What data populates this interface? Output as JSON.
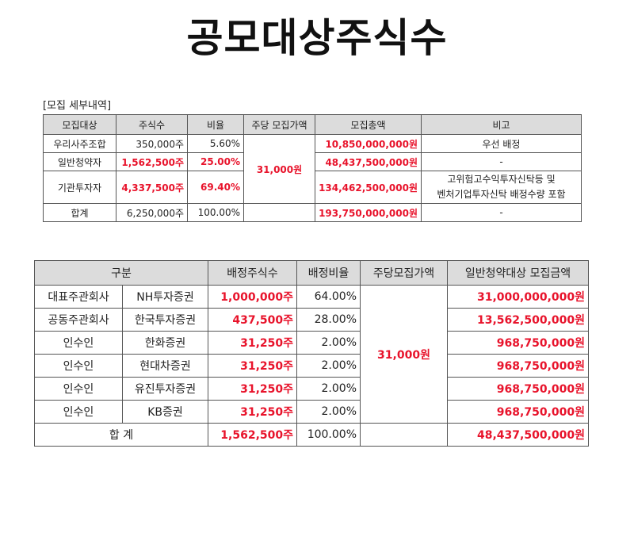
{
  "title": "공모대상주식수",
  "section_label": "[모집 세부내역]",
  "table1": {
    "headers": [
      "모집대상",
      "주식수",
      "비율",
      "주당 모집가액",
      "모집총액",
      "비고"
    ],
    "price": "31,000원",
    "rows": [
      {
        "target": "우리사주조합",
        "shares": "350,000주",
        "ratio": "5.60%",
        "total": "10,850,000,000원",
        "note": "우선 배정"
      },
      {
        "target": "일반청약자",
        "shares": "1,562,500주",
        "ratio": "25.00%",
        "total": "48,437,500,000원",
        "note": "-"
      },
      {
        "target": "기관투자자",
        "shares": "4,337,500주",
        "ratio": "69.40%",
        "total": "134,462,500,000원",
        "note_line1": "고위험고수익투자신탁등 및",
        "note_line2": "벤처기업투자신탁 배정수량 포함"
      },
      {
        "target": "합계",
        "shares": "6,250,000주",
        "ratio": "100.00%",
        "total": "193,750,000,000원",
        "note": "-"
      }
    ]
  },
  "table2": {
    "headers": [
      "구분",
      "배정주식수",
      "배정비율",
      "주당모집가액",
      "일반청약대상 모집금액"
    ],
    "price": "31,000원",
    "rows": [
      {
        "role": "대표주관회사",
        "company": "NH투자증권",
        "shares": "1,000,000주",
        "ratio": "64.00%",
        "amount": "31,000,000,000원"
      },
      {
        "role": "공동주관회사",
        "company": "한국투자증권",
        "shares": "437,500주",
        "ratio": "28.00%",
        "amount": "13,562,500,000원"
      },
      {
        "role": "인수인",
        "company": "한화증권",
        "shares": "31,250주",
        "ratio": "2.00%",
        "amount": "968,750,000원"
      },
      {
        "role": "인수인",
        "company": "현대차증권",
        "shares": "31,250주",
        "ratio": "2.00%",
        "amount": "968,750,000원"
      },
      {
        "role": "인수인",
        "company": "유진투자증권",
        "shares": "31,250주",
        "ratio": "2.00%",
        "amount": "968,750,000원"
      },
      {
        "role": "인수인",
        "company": "KB증권",
        "shares": "31,250주",
        "ratio": "2.00%",
        "amount": "968,750,000원"
      }
    ],
    "total": {
      "label": "합 계",
      "shares": "1,562,500주",
      "ratio": "100.00%",
      "amount": "48,437,500,000원"
    }
  },
  "colors": {
    "highlight": "#e3c3ee",
    "red": "#e8132b",
    "header_bg": "#dcdcdc"
  }
}
